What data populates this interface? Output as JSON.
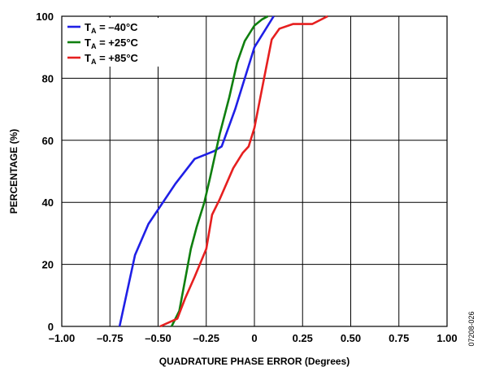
{
  "chart_data": {
    "type": "line",
    "xlabel": "QUADRATURE PHASE ERROR (Degrees)",
    "ylabel": "PERCENTAGE (%)",
    "xlim": [
      -1.0,
      1.0
    ],
    "ylim": [
      0,
      100
    ],
    "x_ticks": [
      "–1.00",
      "–0.75",
      "–0.50",
      "–0.25",
      "0",
      "0.25",
      "0.50",
      "0.75",
      "1.00"
    ],
    "y_ticks": [
      "0",
      "20",
      "40",
      "60",
      "80",
      "100"
    ],
    "grid": true,
    "legend_position": "top-left",
    "series": [
      {
        "name": "T",
        "name_sub": "A",
        "name_suffix": " = –40°C",
        "color": "#1f1fe6",
        "points": [
          [
            -0.7,
            0
          ],
          [
            -0.62,
            23
          ],
          [
            -0.55,
            33
          ],
          [
            -0.41,
            46
          ],
          [
            -0.31,
            54
          ],
          [
            -0.21,
            56.5
          ],
          [
            -0.17,
            58
          ],
          [
            -0.1,
            70
          ],
          [
            0.0,
            90
          ],
          [
            0.1,
            100
          ]
        ]
      },
      {
        "name": "T",
        "name_sub": "A",
        "name_suffix": " = +25°C",
        "color": "#0f7f0f",
        "points": [
          [
            -0.43,
            0
          ],
          [
            -0.39,
            5
          ],
          [
            -0.36,
            15
          ],
          [
            -0.33,
            25
          ],
          [
            -0.3,
            32
          ],
          [
            -0.26,
            40
          ],
          [
            -0.23,
            48
          ],
          [
            -0.18,
            62
          ],
          [
            -0.13,
            74
          ],
          [
            -0.09,
            85
          ],
          [
            -0.05,
            92
          ],
          [
            0.0,
            97
          ],
          [
            0.04,
            99
          ],
          [
            0.07,
            100
          ]
        ]
      },
      {
        "name": "T",
        "name_sub": "A",
        "name_suffix": " = +85°C",
        "color": "#e61f1f",
        "points": [
          [
            -0.49,
            0
          ],
          [
            -0.4,
            2.5
          ],
          [
            -0.36,
            9
          ],
          [
            -0.31,
            16
          ],
          [
            -0.25,
            25
          ],
          [
            -0.22,
            36
          ],
          [
            -0.18,
            41
          ],
          [
            -0.11,
            51
          ],
          [
            -0.06,
            56
          ],
          [
            -0.03,
            58
          ],
          [
            0.0,
            64
          ],
          [
            0.05,
            80
          ],
          [
            0.09,
            92.5
          ],
          [
            0.13,
            96
          ],
          [
            0.2,
            97.5
          ],
          [
            0.3,
            97.5
          ],
          [
            0.38,
            100
          ]
        ]
      }
    ]
  },
  "side_note": "07208-026"
}
